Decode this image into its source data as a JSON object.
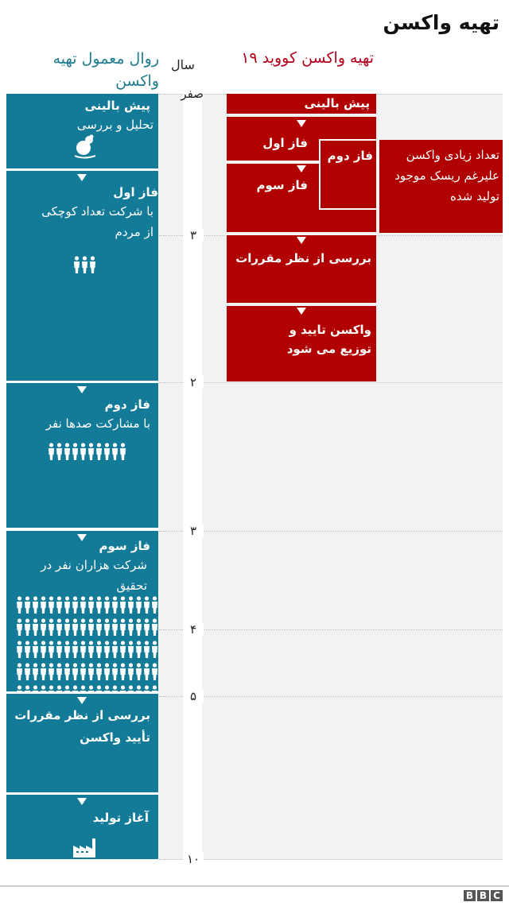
{
  "title": "تهیه واکسن",
  "left_header": "روال معمول تهیه واکسن",
  "right_header": "تهیه واکسن کووید ۱۹",
  "axis_label": "سال",
  "ticks": [
    "صفر",
    "۳",
    "۲",
    "۳",
    "۴",
    "۵",
    "۱۰"
  ],
  "colors": {
    "teal": "#137a97",
    "red": "#b00000"
  },
  "normal": [
    {
      "heading": "پیش بالینی",
      "text": "تحلیل و بررسی",
      "icon": "mouse-icon"
    },
    {
      "heading": "فاز اول",
      "text": "با شرکت تعداد کوچکی از مردم",
      "people": 3
    },
    {
      "heading": "فاز دوم",
      "text": "با مشارکت صدها نفر",
      "people": 10
    },
    {
      "heading": "فاز سوم",
      "text": "شرکت هزاران نفر در تحقیق",
      "people": 100
    },
    {
      "heading": "بررسی از نظر مقررات",
      "text": "تأیید واکسن"
    },
    {
      "heading": "آغاز تولید",
      "icon": "factory-icon"
    }
  ],
  "covid": {
    "preclinical": "پیش بالینی",
    "phase1": "فاز اول",
    "phase2": "فاز دوم",
    "phase3": "فاز سوم",
    "regulatory": "بررسی از نظر مقررات",
    "approval": "واکسن تایید و توزیع می شود",
    "side_note": "تعداد زیادی واکسن علیرغم ریسک موجود تولید شده"
  },
  "footer": {
    "logo": "BBC"
  }
}
